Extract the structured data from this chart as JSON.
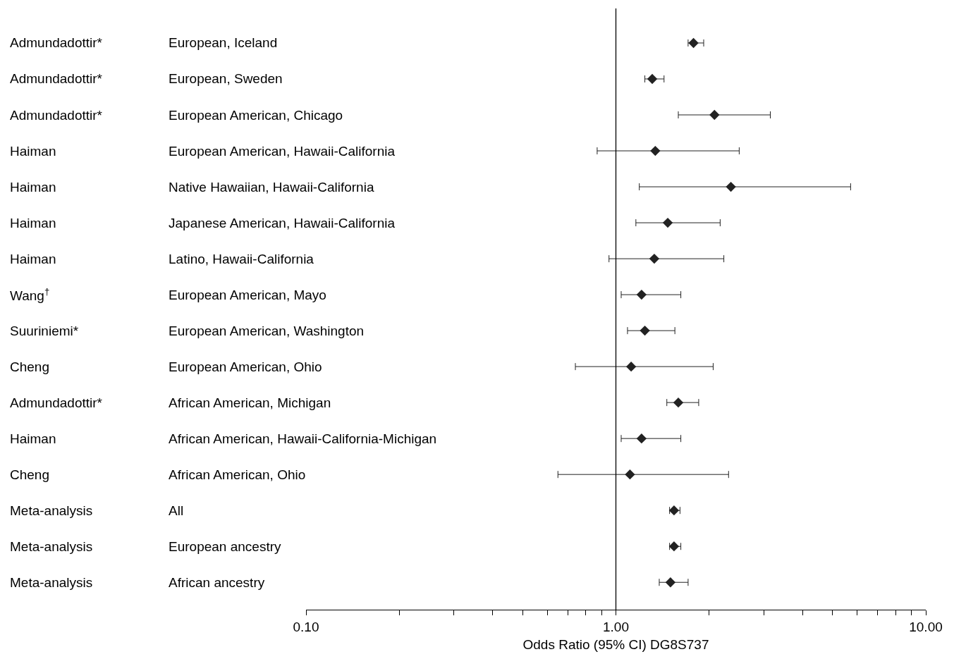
{
  "chart_data": {
    "type": "scatter",
    "orientation": "horizontal",
    "xlabel": "Odds Ratio (95% CI) DG8S737",
    "y2_categories": [
      "Admundadottir*",
      "Admundadottir*",
      "Admundadottir*",
      "Haiman",
      "Haiman",
      "Haiman",
      "Haiman",
      "Wang$^{†}$",
      "Suuriniemi*",
      "Cheng",
      "Admundadottir*",
      "Haiman",
      "Cheng",
      "Meta-analysis",
      "Meta-analysis",
      "Meta-analysis"
    ],
    "categories": [
      "European, Iceland",
      "European, Sweden",
      "European American, Chicago",
      "European American, Hawaii-California",
      "Native Hawaiian, Hawaii-California",
      "Japanese American, Hawaii-California",
      "Latino, Hawaii-California",
      "European American, Mayo",
      "European American, Washington",
      "European American, Ohio",
      "African American, Michigan",
      "African American, Hawaii-California-Michigan",
      "African American, Ohio",
      "All",
      "European ancestry",
      "African ancestry"
    ],
    "series": [
      {
        "color": "#222222",
        "values": [
          1.78,
          1.31,
          2.08,
          1.34,
          2.35,
          1.47,
          1.33,
          1.21,
          1.24,
          1.12,
          1.59,
          1.21,
          1.11,
          1.54,
          1.54,
          1.5
        ],
        "errors": [
          [
            1.71,
            1.92
          ],
          [
            1.24,
            1.43
          ],
          [
            1.59,
            3.15
          ],
          [
            0.87,
            2.5
          ],
          [
            1.19,
            5.72
          ],
          [
            1.16,
            2.17
          ],
          [
            0.95,
            2.23
          ],
          [
            1.04,
            1.62
          ],
          [
            1.09,
            1.55
          ],
          [
            0.74,
            2.06
          ],
          [
            1.46,
            1.85
          ],
          [
            1.04,
            1.62
          ],
          [
            0.65,
            2.31
          ],
          [
            1.49,
            1.61
          ],
          [
            1.49,
            1.62
          ],
          [
            1.38,
            1.71
          ]
        ]
      }
    ],
    "log": "x",
    "xlim": [
      0.1,
      10
    ],
    "xticks": [
      {
        "value": 0.1,
        "label": "0.10"
      },
      {
        "value": 0.2,
        "label": null
      },
      {
        "value": 0.3,
        "label": null
      },
      {
        "value": 0.4,
        "label": null
      },
      {
        "value": 0.5,
        "label": null
      },
      {
        "value": 0.6,
        "label": null
      },
      {
        "value": 0.7,
        "label": null
      },
      {
        "value": 0.8,
        "label": null
      },
      {
        "value": 0.9,
        "label": null
      },
      {
        "value": 1,
        "label": "1.00"
      },
      {
        "value": 2,
        "label": null
      },
      {
        "value": 3,
        "label": null
      },
      {
        "value": 4,
        "label": null
      },
      {
        "value": 5,
        "label": null
      },
      {
        "value": 6,
        "label": null
      },
      {
        "value": 7,
        "label": null
      },
      {
        "value": 8,
        "label": null
      },
      {
        "value": 9,
        "label": null
      },
      {
        "value": 10,
        "label": "10.00"
      }
    ],
    "ref_lines": [
      {
        "axis": "x",
        "value": 1,
        "color": "#000000"
      }
    ],
    "marker": "diamond",
    "grid": false
  }
}
